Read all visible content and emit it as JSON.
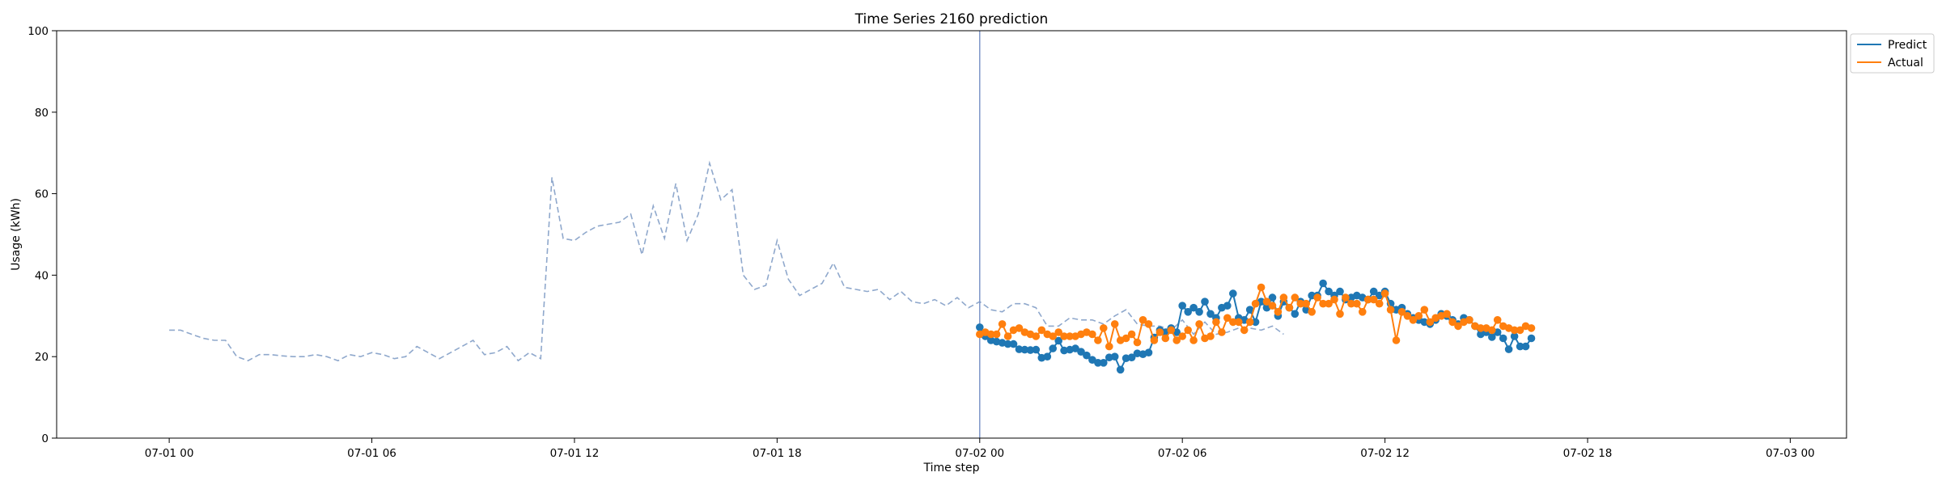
{
  "chart_data": {
    "type": "line",
    "title": "Time Series 2160 prediction",
    "xlabel": "Time step",
    "ylabel": "Usage (kWh)",
    "xlim": [
      "06-30 20:40",
      "07-03 01:40"
    ],
    "ylim": [
      0,
      100
    ],
    "x_ticks": [
      "07-01 00",
      "07-01 06",
      "07-01 12",
      "07-01 18",
      "07-02 00",
      "07-02 06",
      "07-02 12",
      "07-02 18",
      "07-03 00"
    ],
    "y_ticks": [
      0,
      20,
      40,
      60,
      80,
      100
    ],
    "grid": false,
    "legend_position": "outside-top-right",
    "prediction_start": "07-02 00:00",
    "colors": {
      "predict": "#1f77b4",
      "actual": "#ff7f0e",
      "history": "#8fa8cc",
      "divider": "#7f97c9"
    },
    "history": {
      "start": "07-01 00:00",
      "step_minutes": 20,
      "values": [
        26.5,
        26.5,
        25.5,
        24.5,
        24.0,
        24.0,
        20.0,
        19.0,
        20.5,
        20.5,
        20.2,
        20.0,
        20.0,
        20.5,
        20.0,
        19.0,
        20.5,
        20.0,
        21.0,
        20.5,
        19.5,
        20.0,
        22.5,
        21.0,
        19.5,
        21.0,
        22.5,
        24.0,
        20.5,
        21.0,
        22.5,
        19.0,
        21.0,
        19.5,
        64.0,
        49.0,
        48.5,
        50.5,
        52.0,
        52.5,
        53.0,
        55.0,
        45.0,
        57.0,
        49.0,
        62.5,
        48.5,
        55.0,
        67.5,
        58.5,
        61.0,
        40.0,
        36.5,
        37.5,
        48.5,
        39.0,
        35.0,
        36.5,
        38.0,
        43.0,
        37.0,
        36.5,
        36.0,
        36.5,
        34.0,
        36.0,
        33.5,
        33.0,
        34.0,
        32.5,
        34.5,
        32.0,
        33.5,
        31.5,
        31.0,
        33.0,
        33.0,
        32.0,
        27.5,
        27.5,
        29.5,
        29.0,
        29.0,
        28.0,
        30.0,
        31.5,
        28.0,
        27.5,
        27.5,
        26.5,
        29.0,
        25.5,
        28.5,
        25.5,
        26.0,
        27.0,
        27.0,
        26.5,
        27.5,
        25.5
      ]
    },
    "series": [
      {
        "name": "Predict",
        "start": "07-02 00:00",
        "step_minutes": 10,
        "values": [
          27.2,
          25.0,
          24.0,
          23.7,
          23.4,
          23.1,
          23.1,
          21.8,
          21.7,
          21.6,
          21.7,
          19.7,
          20.0,
          22.0,
          23.9,
          21.5,
          21.7,
          22.0,
          21.2,
          20.3,
          19.2,
          18.5,
          18.5,
          19.8,
          20.0,
          16.8,
          19.6,
          19.8,
          20.8,
          20.6,
          21.0,
          24.7,
          26.5,
          26.0,
          27.0,
          26.0,
          32.5,
          31.0,
          32.0,
          31.0,
          33.5,
          30.5,
          29.5,
          32.0,
          32.5,
          35.5,
          29.5,
          29.0,
          31.5,
          28.5,
          33.5,
          32.0,
          34.5,
          30.0,
          33.5,
          32.0,
          30.5,
          33.5,
          31.5,
          35.0,
          35.0,
          38.0,
          36.0,
          35.0,
          36.0,
          34.0,
          34.5,
          35.0,
          34.5,
          34.0,
          36.0,
          35.0,
          36.0,
          33.0,
          31.5,
          32.0,
          30.5,
          29.5,
          29.0,
          28.5,
          28.0,
          29.0,
          30.5,
          30.0,
          29.0,
          28.0,
          29.5,
          29.0,
          27.5,
          25.5,
          26.0,
          24.8,
          26.0,
          24.5,
          21.8,
          25.0,
          22.5,
          22.5,
          24.5
        ]
      },
      {
        "name": "Actual",
        "start": "07-02 00:00",
        "step_minutes": 10,
        "values": [
          25.5,
          26.0,
          25.5,
          25.5,
          28.0,
          25.0,
          26.5,
          27.0,
          26.0,
          25.5,
          25.0,
          26.5,
          25.5,
          25.0,
          26.0,
          25.0,
          25.0,
          25.0,
          25.5,
          26.0,
          25.5,
          24.0,
          27.0,
          22.5,
          28.0,
          24.0,
          24.5,
          25.5,
          23.5,
          29.0,
          28.0,
          24.0,
          26.0,
          24.5,
          26.5,
          24.0,
          25.0,
          26.5,
          24.0,
          28.0,
          24.5,
          25.0,
          28.5,
          26.0,
          29.5,
          28.5,
          28.5,
          26.5,
          28.5,
          33.0,
          37.0,
          33.5,
          32.5,
          31.0,
          34.5,
          32.0,
          34.5,
          33.0,
          33.0,
          31.0,
          34.5,
          33.0,
          33.0,
          34.0,
          30.5,
          34.5,
          33.0,
          33.0,
          31.0,
          34.0,
          34.0,
          33.0,
          35.5,
          31.5,
          24.0,
          31.0,
          30.0,
          29.0,
          30.0,
          31.5,
          28.5,
          29.5,
          30.0,
          30.5,
          28.5,
          27.5,
          28.5,
          29.0,
          27.5,
          27.0,
          27.0,
          26.5,
          29.0,
          27.5,
          27.0,
          26.5,
          26.5,
          27.5,
          27.0
        ]
      }
    ]
  }
}
